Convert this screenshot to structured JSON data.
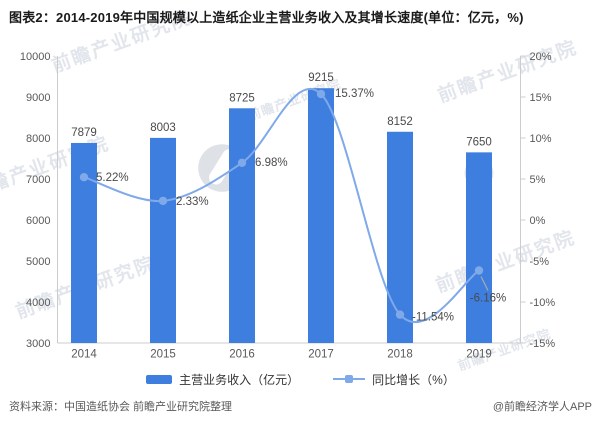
{
  "title": "图表2：2014-2019年中国规模以上造纸企业主营业务收入及其增长速度(单位：亿元，%)",
  "chart_data": {
    "type": "combo-bar-line",
    "categories": [
      "2014",
      "2015",
      "2016",
      "2017",
      "2018",
      "2019"
    ],
    "series": [
      {
        "name": "主营业务收入（亿元）",
        "type": "bar",
        "axis": "left",
        "color": "#3E7EDF",
        "values": [
          7879,
          8003,
          8725,
          9215,
          8152,
          7650
        ],
        "labels": [
          "7879",
          "8003",
          "8725",
          "9215",
          "8152",
          "7650"
        ]
      },
      {
        "name": "同比增长（%）",
        "type": "line",
        "axis": "right",
        "color": "#7FA9E8",
        "smooth": true,
        "values": [
          5.22,
          2.33,
          6.98,
          15.37,
          -11.54,
          -6.16
        ],
        "labels": [
          "5.22%",
          "2.33%",
          "6.98%",
          "15.37%",
          "-11.54%",
          "-6.16%"
        ]
      }
    ],
    "left_axis": {
      "min": 3000,
      "max": 10000,
      "step": 1000,
      "tick_labels": [
        "10000",
        "9000",
        "8000",
        "7000",
        "6000",
        "5000",
        "4000",
        "3000"
      ]
    },
    "right_axis": {
      "min": -15,
      "max": 20,
      "step": 5,
      "tick_labels": [
        "20%",
        "15%",
        "10%",
        "5%",
        "0%",
        "-5%",
        "-10%",
        "-15%"
      ]
    },
    "grid": false,
    "legend_position": "bottom"
  },
  "footer": {
    "source": "资料来源：中国造纸协会 前瞻产业研究院整理",
    "credit": "@前瞻经济学人APP"
  },
  "watermark": {
    "text": "前瞻产业研究院"
  }
}
